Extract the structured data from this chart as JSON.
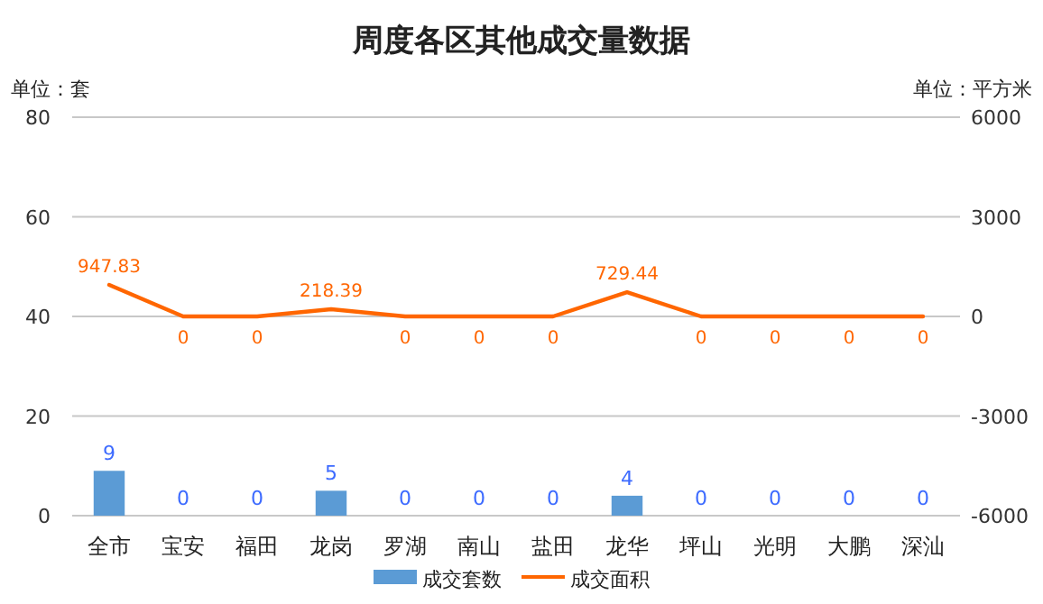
{
  "chart_data": {
    "type": "bar",
    "title": "周度各区其他成交量数据",
    "ylabel": "单位：套",
    "y2label": "单位：平方米",
    "categories": [
      "全市",
      "宝安",
      "福田",
      "龙岗",
      "罗湖",
      "南山",
      "盐田",
      "龙华",
      "坪山",
      "光明",
      "大鹏",
      "深汕"
    ],
    "series": [
      {
        "name": "成交套数",
        "color": "#5b9bd5",
        "values": [
          9,
          0,
          0,
          5,
          0,
          0,
          0,
          4,
          0,
          0,
          0,
          0
        ]
      },
      {
        "name": "成交面积",
        "type": "line",
        "axis": "y2",
        "color": "#ff6600",
        "values": [
          947.83,
          0,
          0,
          218.39,
          0,
          0,
          0,
          729.44,
          0,
          0,
          0,
          0
        ]
      }
    ],
    "ylim": [
      0,
      80
    ],
    "yticks": [
      0,
      20,
      40,
      60,
      80
    ],
    "y2lim": [
      -6000,
      6000
    ],
    "y2ticks": [
      -6000,
      -3000,
      0,
      3000,
      6000
    ],
    "grid": "y",
    "legend": "bottom",
    "data_labels": true,
    "marker": "none",
    "line_style": "solid"
  }
}
